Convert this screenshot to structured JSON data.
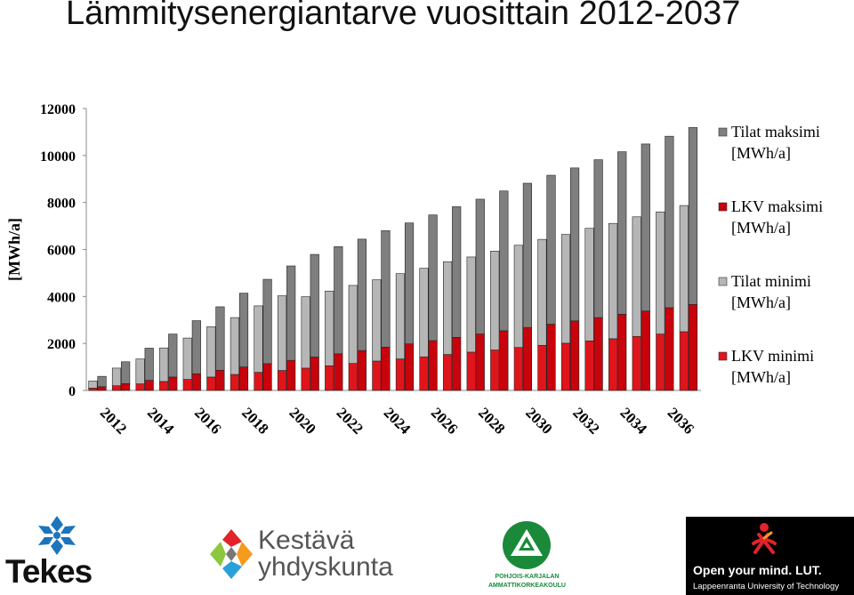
{
  "slide": {
    "title": "Lämmitysenergiantarve vuosittain 2012-2037"
  },
  "chart_data": {
    "type": "bar",
    "stacked": true,
    "grouped": true,
    "ylabel": "[MWh/a]",
    "ylim": [
      0,
      12000
    ],
    "y_ticks": [
      0,
      2000,
      4000,
      6000,
      8000,
      10000,
      12000
    ],
    "x_tick_labels": [
      "2012",
      "2014",
      "2016",
      "2018",
      "2020",
      "2022",
      "2024",
      "2026",
      "2028",
      "2030",
      "2032",
      "2034",
      "2036"
    ],
    "categories": [
      "2012",
      "2013",
      "2014",
      "2015",
      "2016",
      "2017",
      "2018",
      "2019",
      "2020",
      "2021",
      "2022",
      "2023",
      "2024",
      "2025",
      "2026",
      "2027",
      "2028",
      "2029",
      "2030",
      "2031",
      "2032",
      "2033",
      "2034",
      "2035",
      "2036",
      "2037"
    ],
    "grid": false,
    "legend_position": "right",
    "series": [
      {
        "name": "LKV minimi",
        "stack": "minimi",
        "color": "#e0151b",
        "values": [
          100,
          200,
          280,
          380,
          470,
          570,
          680,
          770,
          850,
          950,
          1050,
          1150,
          1250,
          1340,
          1430,
          1530,
          1630,
          1720,
          1830,
          1920,
          2010,
          2110,
          2200,
          2300,
          2400,
          2500
        ]
      },
      {
        "name": "Tilat minimi",
        "stack": "minimi",
        "color": "#b6b6b6",
        "values": [
          300,
          750,
          1060,
          1430,
          1760,
          2140,
          2420,
          2830,
          3180,
          3040,
          3180,
          3320,
          3460,
          3630,
          3770,
          3950,
          4050,
          4210,
          4350,
          4510,
          4630,
          4790,
          4910,
          5090,
          5200,
          5370
        ]
      },
      {
        "name": "LKV maksimi",
        "stack": "maksimi",
        "color": "#c8030b",
        "values": [
          160,
          290,
          430,
          570,
          710,
          860,
          1000,
          1140,
          1280,
          1420,
          1560,
          1700,
          1840,
          1980,
          2120,
          2260,
          2400,
          2540,
          2680,
          2820,
          2960,
          3100,
          3240,
          3380,
          3520,
          3660
        ]
      },
      {
        "name": "Tilat maksimi",
        "stack": "maksimi",
        "color": "#7f7f7f",
        "values": [
          440,
          930,
          1370,
          1830,
          2260,
          2700,
          3140,
          3590,
          4020,
          4370,
          4560,
          4740,
          4960,
          5150,
          5350,
          5560,
          5740,
          5950,
          6140,
          6340,
          6510,
          6720,
          6920,
          7110,
          7300,
          7530
        ]
      }
    ],
    "legend_entries": [
      {
        "series": "Tilat maksimi",
        "line1": "Tilat maksimi",
        "line2": "[MWh/a]",
        "color": "#7f7f7f"
      },
      {
        "series": "LKV maksimi",
        "line1": "LKV maksimi",
        "line2": "[MWh/a]",
        "color": "#c8030b"
      },
      {
        "series": "Tilat minimi",
        "line1": "Tilat minimi",
        "line2": "[MWh/a]",
        "color": "#b6b6b6"
      },
      {
        "series": "LKV minimi",
        "line1": "LKV minimi",
        "line2": "[MWh/a]",
        "color": "#e0151b"
      }
    ]
  },
  "logos": {
    "tekes": {
      "text": "Tekes",
      "color": "#1a75bc"
    },
    "kestava": {
      "line1": "Kestävä",
      "line2": "yhdyskunta"
    },
    "pkamk": {
      "line1": "POHJOIS-KARJALAN",
      "line2": "AMMATTIKORKEAKOULU",
      "color": "#1a8a3a"
    },
    "lut": {
      "slogan": "Open your mind. LUT.",
      "name": "Lappeenranta University of Technology",
      "accent": "#e2232a"
    }
  }
}
